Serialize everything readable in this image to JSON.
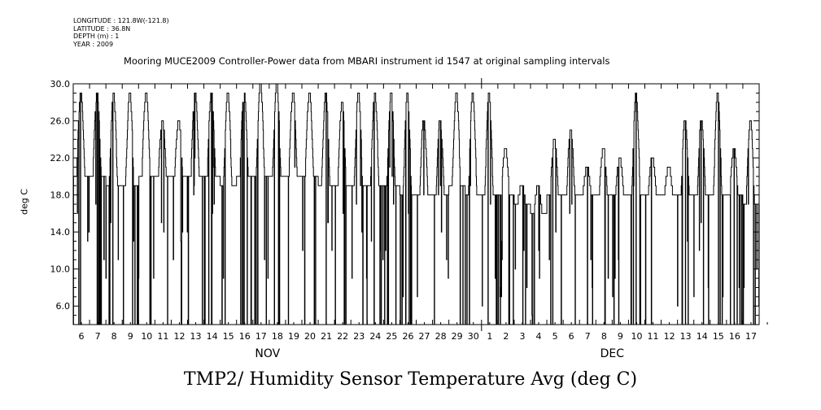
{
  "meta_lines": [
    "LONGITUDE : 121.8W(-121.8)",
    "LATITUDE : 36.8N",
    "DEPTH (m) : 1",
    "YEAR : 2009"
  ],
  "caption": "TMP2/ Humidity Sensor Temperature Avg (deg C)",
  "chart_data": {
    "type": "line",
    "title": "Mooring MUCE2009 Controller-Power data from MBARI instrument id 1547 at original sampling intervals",
    "ylabel": "deg C",
    "ylim": [
      4.0,
      30.0
    ],
    "yticks": [
      "6.0",
      "10.0",
      "14.0",
      "18.0",
      "22.0",
      "26.0",
      "30.0"
    ],
    "x_start_label": "Nov 5.5",
    "x_end_label": "Dec 17.5",
    "x_tick_labels": [
      "6",
      "7",
      "8",
      "9",
      "10",
      "11",
      "12",
      "13",
      "14",
      "15",
      "16",
      "17",
      "18",
      "19",
      "20",
      "21",
      "22",
      "23",
      "24",
      "25",
      "26",
      "27",
      "28",
      "29",
      "30",
      "1",
      "2",
      "3",
      "4",
      "5",
      "6",
      "7",
      "8",
      "9",
      "10",
      "11",
      "12",
      "13",
      "14",
      "15",
      "16",
      "17"
    ],
    "month_labels": [
      {
        "label": "NOV",
        "at_day_index": 11.9
      },
      {
        "label": "DEC",
        "at_day_index": 33.0
      }
    ],
    "daily_pattern": {
      "days_from_start": [
        0,
        1,
        2,
        3,
        4,
        5,
        6,
        7,
        8,
        9,
        10,
        11,
        12,
        13,
        14,
        15,
        16,
        17,
        18,
        19,
        20,
        21,
        22,
        23,
        24,
        25,
        26,
        27,
        28,
        29,
        30,
        31,
        32,
        33,
        34,
        35,
        36,
        37,
        38,
        39,
        40,
        41
      ],
      "daily_max": [
        29,
        29,
        29,
        29,
        29,
        26,
        26,
        29,
        29,
        29,
        29,
        30,
        30,
        29,
        29,
        29,
        28,
        29,
        29,
        29,
        29,
        26,
        26,
        29,
        29,
        29,
        23,
        19,
        19,
        24,
        25,
        21,
        23,
        22,
        29,
        22,
        21,
        26,
        26,
        29,
        23,
        26
      ],
      "daily_min": [
        20,
        20,
        19,
        19,
        20,
        20,
        20,
        20,
        20,
        19,
        20,
        20,
        20,
        20,
        20,
        19,
        19,
        19,
        19,
        19,
        18,
        18,
        18,
        19,
        18,
        18,
        18,
        17,
        16,
        18,
        18,
        18,
        18,
        18,
        18,
        18,
        18,
        18,
        18,
        18,
        18,
        17
      ]
    },
    "grid": false,
    "legend": "none"
  }
}
